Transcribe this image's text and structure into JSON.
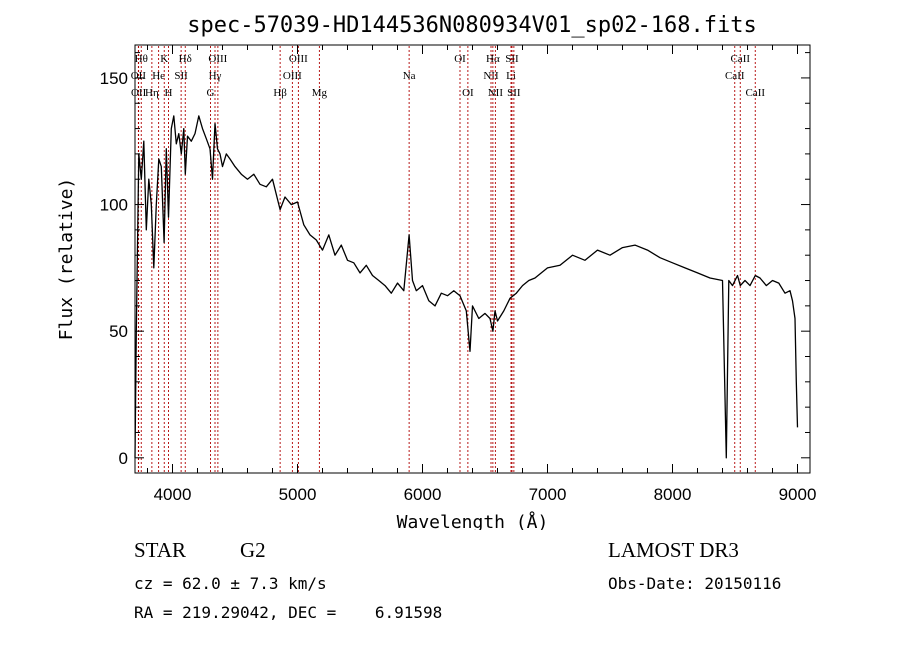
{
  "chart_data": {
    "type": "line",
    "title": "spec-57039-HD144536N080934V01_sp02-168.fits",
    "xlabel": "Wavelength (Å)",
    "ylabel": "Flux (relative)",
    "xlim": [
      3700,
      9100
    ],
    "ylim": [
      -6,
      163
    ],
    "xticks": [
      4000,
      5000,
      6000,
      7000,
      8000,
      9000
    ],
    "yticks": [
      0,
      50,
      100,
      150
    ],
    "series": [
      {
        "name": "flux",
        "color": "#000000",
        "x": [
          3700,
          3710,
          3730,
          3750,
          3770,
          3790,
          3810,
          3830,
          3850,
          3870,
          3890,
          3910,
          3933,
          3950,
          3968,
          3990,
          4010,
          4030,
          4050,
          4070,
          4090,
          4102,
          4120,
          4150,
          4180,
          4210,
          4240,
          4270,
          4300,
          4320,
          4340,
          4360,
          4380,
          4400,
          4430,
          4460,
          4500,
          4550,
          4600,
          4650,
          4700,
          4750,
          4800,
          4861,
          4900,
          4950,
          5000,
          5050,
          5100,
          5150,
          5200,
          5250,
          5300,
          5350,
          5400,
          5450,
          5500,
          5550,
          5600,
          5650,
          5700,
          5750,
          5800,
          5850,
          5893,
          5920,
          5950,
          6000,
          6050,
          6100,
          6150,
          6200,
          6250,
          6300,
          6350,
          6380,
          6400,
          6450,
          6500,
          6540,
          6563,
          6580,
          6600,
          6650,
          6700,
          6750,
          6800,
          6850,
          6900,
          6950,
          7000,
          7100,
          7200,
          7300,
          7400,
          7500,
          7600,
          7700,
          7800,
          7900,
          8000,
          8100,
          8200,
          8300,
          8400,
          8430,
          8450,
          8480,
          8520,
          8542,
          8580,
          8620,
          8662,
          8700,
          8750,
          8800,
          8850,
          8900,
          8940,
          8960,
          8980,
          8990,
          9000
        ],
        "values": [
          0,
          50,
          120,
          110,
          125,
          90,
          110,
          100,
          75,
          100,
          118,
          115,
          85,
          122,
          95,
          130,
          135,
          124,
          128,
          120,
          130,
          112,
          127,
          125,
          128,
          135,
          130,
          126,
          122,
          110,
          132,
          122,
          120,
          115,
          120,
          118,
          115,
          112,
          110,
          112,
          108,
          107,
          110,
          98,
          103,
          100,
          101,
          92,
          88,
          86,
          82,
          88,
          80,
          84,
          78,
          77,
          73,
          76,
          72,
          70,
          68,
          65,
          69,
          66,
          88,
          70,
          66,
          68,
          62,
          60,
          65,
          64,
          66,
          64,
          58,
          42,
          60,
          55,
          57,
          55,
          50,
          58,
          54,
          58,
          63,
          65,
          68,
          70,
          71,
          73,
          75,
          76,
          80,
          78,
          82,
          80,
          83,
          84,
          82,
          79,
          77,
          75,
          73,
          71,
          70,
          0,
          70,
          68,
          72,
          68,
          70,
          68,
          72,
          71,
          68,
          70,
          69,
          65,
          66,
          62,
          55,
          30,
          12
        ]
      }
    ],
    "lines": [
      {
        "label": "Hθ",
        "x": 3750,
        "row": 0
      },
      {
        "label": "OII",
        "x": 3727,
        "row": 1
      },
      {
        "label": "OII",
        "x": 3729,
        "row": 2
      },
      {
        "label": "Hη",
        "x": 3835,
        "row": 2
      },
      {
        "label": "He",
        "x": 3889,
        "row": 1
      },
      {
        "label": "K",
        "x": 3934,
        "row": 0
      },
      {
        "label": "H",
        "x": 3968,
        "row": 2
      },
      {
        "label": "SII",
        "x": 4069,
        "row": 1
      },
      {
        "label": "Hδ",
        "x": 4102,
        "row": 0
      },
      {
        "label": "Hγ",
        "x": 4340,
        "row": 1
      },
      {
        "label": "G",
        "x": 4304,
        "row": 2
      },
      {
        "label": "OIII",
        "x": 4363,
        "row": 0
      },
      {
        "label": "Hβ",
        "x": 4861,
        "row": 2
      },
      {
        "label": "OIII",
        "x": 4959,
        "row": 1
      },
      {
        "label": "OIII",
        "x": 5007,
        "row": 0
      },
      {
        "label": "Mg",
        "x": 5175,
        "row": 2
      },
      {
        "label": "Na",
        "x": 5893,
        "row": 1
      },
      {
        "label": "OI",
        "x": 6300,
        "row": 0
      },
      {
        "label": "OI",
        "x": 6363,
        "row": 2
      },
      {
        "label": "NII",
        "x": 6548,
        "row": 1
      },
      {
        "label": "Hα",
        "x": 6563,
        "row": 0
      },
      {
        "label": "NII",
        "x": 6583,
        "row": 2
      },
      {
        "label": "SII",
        "x": 6716,
        "row": 0
      },
      {
        "label": "Li",
        "x": 6708,
        "row": 1
      },
      {
        "label": "SII",
        "x": 6731,
        "row": 2
      },
      {
        "label": "CaII",
        "x": 8498,
        "row": 1
      },
      {
        "label": "CaII",
        "x": 8542,
        "row": 0
      },
      {
        "label": "CaII",
        "x": 8662,
        "row": 2
      }
    ]
  },
  "info": {
    "obj_type": "STAR",
    "sub_class": "G2",
    "cz": "cz = 62.0 ± 7.3 km/s",
    "radec": "RA = 219.29042, DEC =    6.91598",
    "survey": "LAMOST DR3",
    "obs_date": "Obs-Date: 20150116"
  }
}
